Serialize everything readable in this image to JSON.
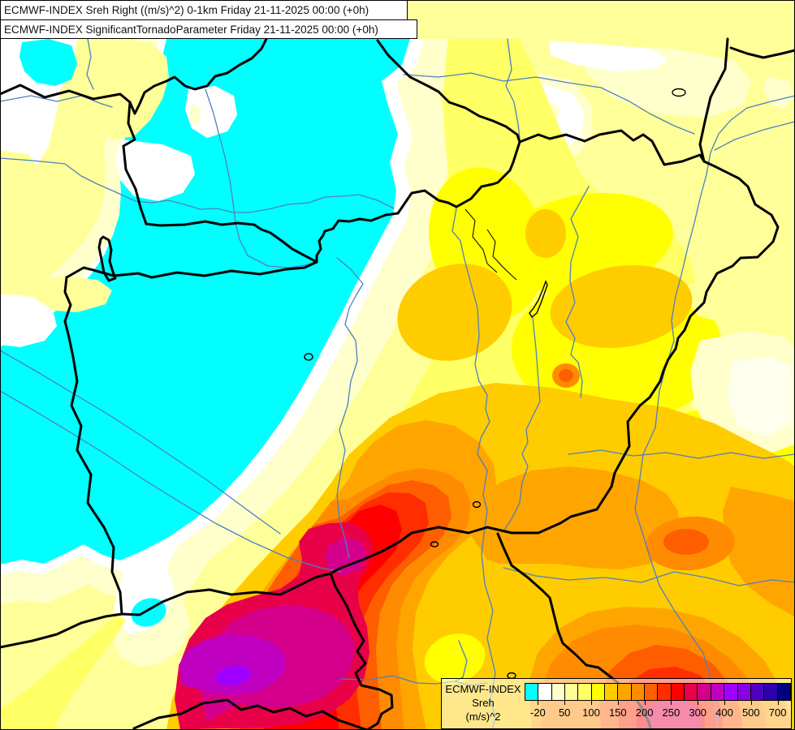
{
  "titles": {
    "line1": "ECMWF-INDEX Sreh Right ((m/s)^2) 0-1km Friday 21-11-2025 00:00 (+0h)",
    "line2": "ECMWF-INDEX SignificantTornadoParameter Friday 21-11-2025 00:00 (+0h)"
  },
  "legend": {
    "model": "ECMWF-INDEX",
    "parameter": "Sreh",
    "units": "(m/s)^2",
    "colors": [
      "#00FFFF",
      "#FFFFFF",
      "#FFFFCC",
      "#FFFF99",
      "#FFFF66",
      "#FFFF00",
      "#FFCC00",
      "#FFA500",
      "#FF8C00",
      "#FF5E00",
      "#FF2D00",
      "#FF0000",
      "#E80048",
      "#D4008C",
      "#C000C0",
      "#A000FF",
      "#8A00E8",
      "#5000C0",
      "#2C00AC",
      "#000080"
    ],
    "tick_values": [
      "-20",
      "50",
      "100",
      "150",
      "200",
      "250",
      "300",
      "400",
      "500",
      "700"
    ],
    "tick_boundary_indices": [
      1,
      3,
      5,
      7,
      9,
      11,
      13,
      15,
      17,
      19
    ]
  },
  "map": {
    "colors": {
      "border": "#000000",
      "river": "#4d80c0",
      "lake_outline": "#000000",
      "lowest_fill": "#00FFFF",
      "highest_visible_fill": "#A000FF"
    }
  }
}
